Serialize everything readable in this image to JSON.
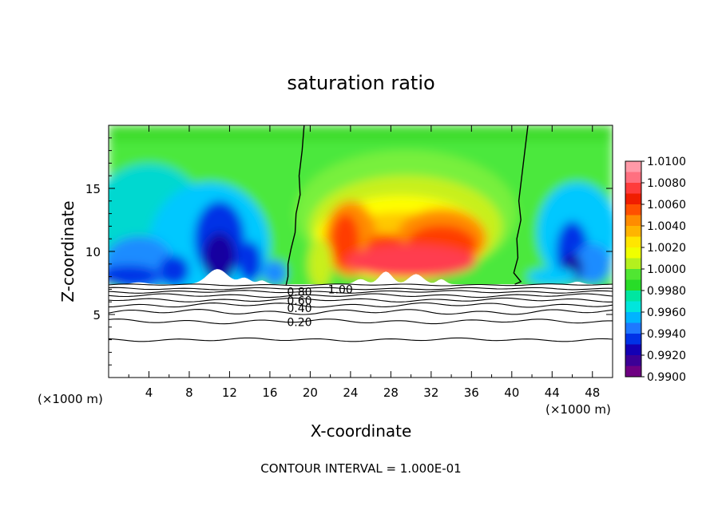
{
  "chart_data": {
    "type": "heatmap",
    "title": "saturation ratio",
    "xlabel": "X-coordinate",
    "ylabel": "Z-coordinate",
    "x_unit_label": "(×1000 m)",
    "y_unit_label": "(×1000 m)",
    "xlim": [
      0,
      50
    ],
    "ylim": [
      0,
      20
    ],
    "x_ticks": [
      4,
      8,
      12,
      16,
      20,
      24,
      28,
      32,
      36,
      40,
      44,
      48
    ],
    "y_ticks": [
      5,
      10,
      15
    ],
    "footer": "CONTOUR INTERVAL = 1.000E-01",
    "colorbar": {
      "levels": [
        "1.0100",
        "1.0080",
        "1.0060",
        "1.0040",
        "1.0020",
        "1.0000",
        "0.9980",
        "0.9960",
        "0.9940",
        "0.9920",
        "0.9900"
      ],
      "range": [
        0.99,
        1.01
      ]
    },
    "contour_labels": [
      {
        "text": "1.00",
        "x": 23.0,
        "z": 7.0
      },
      {
        "text": "0.80",
        "x": 17.7,
        "z": 6.8
      },
      {
        "text": "0.60",
        "x": 17.7,
        "z": 6.1
      },
      {
        "text": "0.40",
        "x": 17.7,
        "z": 5.5
      },
      {
        "text": "0.20",
        "x": 17.7,
        "z": 4.4
      }
    ],
    "cloud_base_z": 7.4,
    "saturation_boundary_x": [
      18.0,
      41.0
    ]
  }
}
